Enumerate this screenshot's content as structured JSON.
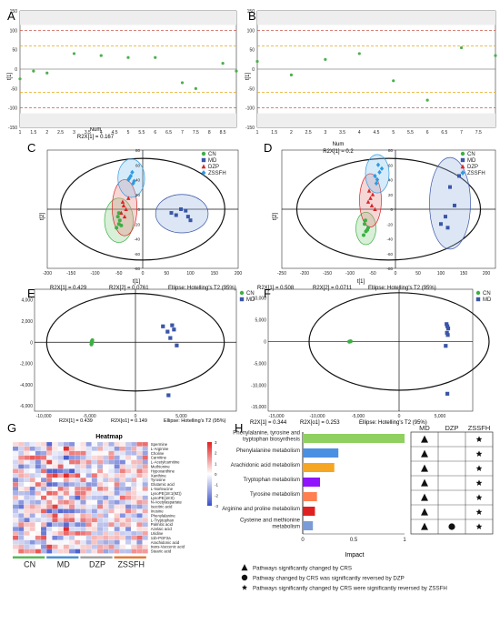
{
  "panels": {
    "A": {
      "letter": "A",
      "xlabel": "Num",
      "subtitle": "R2X[1] = 0.167",
      "ylabel": "t[1]"
    },
    "B": {
      "letter": "B",
      "xlabel": "Num",
      "subtitle": "R2X[1] = 0.2",
      "ylabel": "t[1]"
    },
    "C": {
      "letter": "C",
      "foot": [
        "R2X[1] = 0.429",
        "R2X[2] = 0.0761",
        "Ellipse: Hotelling's T2 (95%)"
      ],
      "xlabel": "t[1]",
      "ylabel": "t[2]"
    },
    "D": {
      "letter": "D",
      "foot": [
        "R2X[1] = 0.508",
        "R2X[2] = 0.0711",
        "Ellipse: Hotelling's T2 (95%)"
      ],
      "xlabel": "t[1]",
      "ylabel": "t[2]"
    },
    "E": {
      "letter": "E",
      "foot": [
        "R2X[1] = 0.439",
        "R2X[o1] = 0.149",
        "Ellipse: Hotelling's T2 (95%)"
      ]
    },
    "F": {
      "letter": "F",
      "foot": [
        "R2X[1] = 0.344",
        "R2X[o1] = 0.253",
        "Ellipse: Hotelling's T2 (95%)"
      ]
    },
    "G": {
      "letter": "G",
      "title": "Heatmap"
    },
    "H": {
      "letter": "H",
      "xlabel": "Impact"
    }
  },
  "legend_groups": {
    "four": [
      {
        "label": "CN",
        "color": "#3cb043",
        "shape": "circle"
      },
      {
        "label": "MD",
        "color": "#3a56a8",
        "shape": "square"
      },
      {
        "label": "DZP",
        "color": "#d62728",
        "shape": "triangle"
      },
      {
        "label": "ZSSFH",
        "color": "#2e9be0",
        "shape": "diamond"
      }
    ],
    "two": [
      {
        "label": "CN",
        "color": "#3cb043",
        "shape": "circle"
      },
      {
        "label": "MD",
        "color": "#3a56a8",
        "shape": "square"
      }
    ]
  },
  "colors": {
    "cn": "#3cb043",
    "md": "#3a56a8",
    "dzp": "#d62728",
    "zssfh": "#2e9be0",
    "heat_high": "#e02020",
    "heat_low": "#3a4fc8"
  },
  "chart_data": [
    {
      "id": "A",
      "type": "scatter",
      "x": [
        1,
        1.5,
        2,
        3,
        4,
        5,
        6,
        7,
        7.5,
        8.5,
        9
      ],
      "y": [
        -25,
        -5,
        -10,
        40,
        35,
        30,
        30,
        -35,
        -50,
        15,
        -5
      ],
      "xticks": [
        "1",
        "1.5",
        "2",
        "2.5",
        "3",
        "3.5",
        "4",
        "4.5",
        "5",
        "5.5",
        "6",
        "6.5",
        "7",
        "7.5",
        "8",
        "8.5"
      ],
      "yticks": [
        "150",
        "100",
        "50",
        "0",
        "-50",
        "-100",
        "-150"
      ],
      "xlim": [
        1,
        9
      ],
      "ylim": [
        -150,
        150
      ]
    },
    {
      "id": "B",
      "type": "scatter",
      "x": [
        1,
        2,
        3,
        4,
        5,
        6,
        7,
        8
      ],
      "y": [
        20,
        -15,
        25,
        40,
        -30,
        -80,
        55,
        35
      ],
      "xticks": [
        "1",
        "1.5",
        "2",
        "2.5",
        "3",
        "3.5",
        "4",
        "4.5",
        "5",
        "5.5",
        "6",
        "6.5",
        "7",
        "7.5"
      ],
      "yticks": [
        "150",
        "100",
        "50",
        "0",
        "-50",
        "-100",
        "-150"
      ],
      "xlim": [
        1,
        8
      ],
      "ylim": [
        -150,
        150
      ]
    },
    {
      "id": "C",
      "type": "scatter",
      "xticks": [
        "-200",
        "-150",
        "-100",
        "-50",
        "0",
        "50",
        "100",
        "150",
        "200"
      ],
      "yticks": [
        "80",
        "60",
        "40",
        "20",
        "0",
        "-20",
        "-40",
        "-60",
        "-80"
      ],
      "xlim": [
        -200,
        200
      ],
      "ylim": [
        -80,
        80
      ],
      "series": [
        {
          "name": "CN",
          "x": [
            -55,
            -50,
            -48,
            -52,
            -45,
            -50
          ],
          "y": [
            -25,
            -20,
            -15,
            -10,
            -22,
            -5
          ]
        },
        {
          "name": "MD",
          "x": [
            60,
            70,
            80,
            90,
            95,
            100
          ],
          "y": [
            -5,
            -8,
            0,
            -2,
            -10,
            -15
          ]
        },
        {
          "name": "DZP",
          "x": [
            -45,
            -40,
            -35,
            -38,
            -42,
            -30
          ],
          "y": [
            -5,
            5,
            0,
            -10,
            10,
            15
          ]
        },
        {
          "name": "ZSSFH",
          "x": [
            -30,
            -25,
            -20,
            -22,
            -28,
            -18
          ],
          "y": [
            40,
            45,
            35,
            50,
            42,
            38
          ]
        }
      ]
    },
    {
      "id": "D",
      "type": "scatter",
      "xticks": [
        "-250",
        "-200",
        "-150",
        "-100",
        "-50",
        "0",
        "50",
        "100",
        "150",
        "200"
      ],
      "yticks": [
        "80",
        "60",
        "40",
        "20",
        "0",
        "-20",
        "-40",
        "-60",
        "-80"
      ],
      "xlim": [
        -250,
        220
      ],
      "ylim": [
        -80,
        80
      ],
      "series": [
        {
          "name": "CN",
          "x": [
            -70,
            -65,
            -60,
            -68,
            -62,
            -66
          ],
          "y": [
            -35,
            -30,
            -25,
            -20,
            -28,
            -15
          ]
        },
        {
          "name": "MD",
          "x": [
            100,
            110,
            130,
            120,
            140,
            115
          ],
          "y": [
            -20,
            -10,
            5,
            30,
            45,
            -25
          ]
        },
        {
          "name": "DZP",
          "x": [
            -60,
            -55,
            -50,
            -52,
            -58,
            -45
          ],
          "y": [
            10,
            15,
            20,
            5,
            25,
            0
          ]
        },
        {
          "name": "ZSSFH",
          "x": [
            -40,
            -35,
            -30,
            -45,
            -38,
            -42
          ],
          "y": [
            40,
            50,
            55,
            45,
            60,
            35
          ]
        }
      ]
    },
    {
      "id": "E",
      "type": "scatter",
      "xticks": [
        "-10,000",
        "-5,000",
        "0",
        "5,000"
      ],
      "yticks": [
        "4,000",
        "2,000",
        "0",
        "-2,000",
        "-4,000",
        "-6,000"
      ],
      "xlim": [
        -11000,
        11000
      ],
      "ylim": [
        -6500,
        5000
      ],
      "series": [
        {
          "name": "CN",
          "x": [
            -4800,
            -4750,
            -4700,
            -4780,
            -4720,
            -4760
          ],
          "y": [
            -200,
            100,
            200,
            0,
            50,
            -100
          ]
        },
        {
          "name": "MD",
          "x": [
            3000,
            3500,
            4000,
            4500,
            3800,
            4200,
            3600
          ],
          "y": [
            1500,
            1000,
            1600,
            -300,
            400,
            1200,
            -5000
          ]
        }
      ]
    },
    {
      "id": "F",
      "type": "scatter",
      "xticks": [
        "-15,000",
        "-10,000",
        "-5,000",
        "0",
        "5,000"
      ],
      "yticks": [
        "10,000",
        "5,000",
        "0",
        "-5,000",
        "-10,000",
        "-15,000"
      ],
      "xlim": [
        -16000,
        9000
      ],
      "ylim": [
        -16000,
        12000
      ],
      "series": [
        {
          "name": "CN",
          "x": [
            -6000,
            -5900,
            -6100,
            -5950,
            -6050,
            -6000
          ],
          "y": [
            0,
            50,
            -50,
            20,
            -20,
            0
          ]
        },
        {
          "name": "MD",
          "x": [
            5800,
            5900,
            6000,
            5850,
            5950,
            5700,
            5900
          ],
          "y": [
            4000,
            3500,
            3000,
            2000,
            1500,
            -1000,
            -12000
          ]
        }
      ]
    },
    {
      "id": "G",
      "type": "heatmap",
      "rows": [
        "Spermine",
        "L-Arginine",
        "Choline",
        "Carnitine",
        "L-Acetylcarnitine",
        "Methionine",
        "Hypoxanthine",
        "Xanthine",
        "Tyrosine",
        "Glutamic acid",
        "L-Norleucine",
        "LysoPE(18:1(9Z))",
        "LysoPE(18:0)",
        "N-Acetylaspartate",
        "Isocitric acid",
        "Inosine",
        "Phenylalanine",
        "L-Tryptophan",
        "Palmitic acid",
        "Azelaic acid",
        "Uridine",
        "11b-PGF2a",
        "Arachidonic acid",
        "trans-Vaccenic acid",
        "Stearic acid"
      ],
      "groups": [
        "CN",
        "MD",
        "DZP",
        "ZSSFH"
      ],
      "scale_ticks": [
        "3",
        "2",
        "1",
        "0",
        "-1",
        "-2",
        "-3"
      ],
      "group_colors": [
        "#56b855",
        "#4a8fd0",
        "#a0a0a0",
        "#e07b39"
      ]
    },
    {
      "id": "H",
      "type": "bar",
      "categories": [
        "Phenylalanine, tyrosine and tryptophan biosynthesis",
        "Phenylalanine metabolism",
        "Arachidonic acid metabolism",
        "Tryptophan metabolism",
        "Tyrosine metabolism",
        "Arginine and proline metabolism",
        "Cysteine and methionine metabolism"
      ],
      "values": [
        1.0,
        0.35,
        0.31,
        0.17,
        0.14,
        0.12,
        0.1
      ],
      "bar_colors": [
        "#90d060",
        "#4a90e2",
        "#f5a623",
        "#9013fe",
        "#ff7f50",
        "#e02020",
        "#7b9bd8"
      ],
      "xticks": [
        "0",
        "0.5",
        "1"
      ],
      "xlim": [
        0,
        1
      ],
      "table_columns": [
        "MD",
        "DZP",
        "ZSSFH"
      ],
      "table": [
        [
          "triangle",
          "",
          "star"
        ],
        [
          "triangle",
          "",
          "star"
        ],
        [
          "triangle",
          "",
          "star"
        ],
        [
          "triangle",
          "",
          "star"
        ],
        [
          "triangle",
          "",
          "star"
        ],
        [
          "triangle",
          "",
          "star"
        ],
        [
          "triangle",
          "circle",
          "star"
        ]
      ],
      "notes": [
        {
          "symbol": "triangle",
          "text": "Pathways significantly changed by CRS"
        },
        {
          "symbol": "circle",
          "text": "Pathway changed by CRS was significantly reversed by DZP"
        },
        {
          "symbol": "star",
          "text": "Pathways significantly changed by CRS were significantly reversed by ZSSFH"
        }
      ]
    }
  ]
}
